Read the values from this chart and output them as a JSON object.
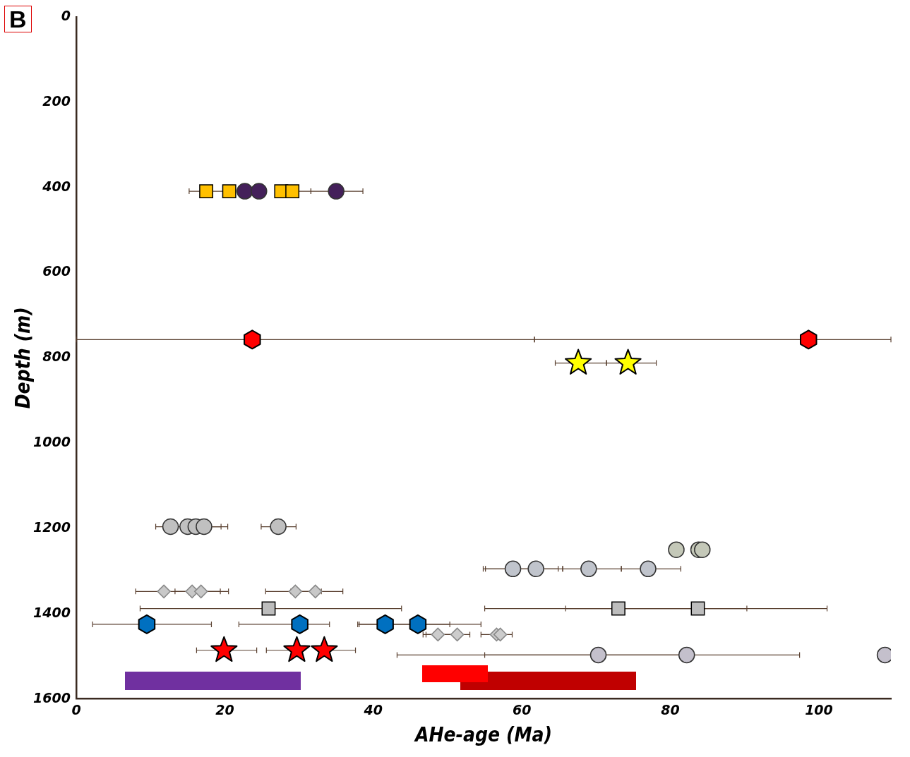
{
  "chart_data": {
    "type": "scatter",
    "xlabel": "AHe-age (Ma)",
    "ylabel": "Depth (m)",
    "annotations": [
      "B"
    ],
    "xlim": [
      0,
      109.7
    ],
    "xticks": [
      0,
      20,
      40,
      60,
      80,
      100
    ],
    "ylim": [
      1600,
      0
    ],
    "yticks": [
      0,
      200,
      400,
      600,
      800,
      1000,
      1200,
      1400,
      1600
    ],
    "grid": false,
    "legend": false,
    "series": [
      {
        "color": "#ffc000",
        "marker": "square",
        "x": [
          17.5,
          20.6,
          27.6,
          29.1
        ],
        "values": [
          409,
          409,
          409,
          409
        ],
        "xerrors": [
          [
            15.2,
            19.8
          ],
          null,
          null,
          [
            26.9,
            31.6
          ]
        ]
      },
      {
        "color": "#44205a",
        "marker": "circle",
        "x": [
          22.7,
          24.6,
          35.0
        ],
        "values": [
          409,
          409,
          409
        ],
        "xerrors": [
          null,
          null,
          [
            31.6,
            38.6
          ]
        ]
      },
      {
        "color": "#ff0000",
        "x": [
          23.7,
          98.6
        ],
        "values": [
          757,
          757
        ],
        "xerrors": [
          [
            0,
            61.7
          ],
          [
            61.7,
            109.7
          ]
        ]
      },
      {
        "color": "#ffff00",
        "marker": "star",
        "x": [
          67.6,
          74.3
        ],
        "values": [
          812,
          812
        ],
        "xerrors": [
          [
            64.5,
            71.4
          ],
          [
            71.4,
            78.1
          ]
        ]
      },
      {
        "color": "#c0c0c0",
        "marker": "circle",
        "x": [
          12.7,
          15.0,
          16.1,
          17.2,
          27.2
        ],
        "values": [
          1196,
          1196,
          1196,
          1196,
          1196
        ],
        "xerrors": [
          [
            10.7,
            19.5
          ],
          null,
          null,
          [
            14.9,
            20.4
          ],
          [
            24.9,
            29.6
          ]
        ]
      },
      {
        "color": "#c4c8b8",
        "marker": "circle",
        "x": [
          80.8,
          83.8,
          84.3
        ],
        "values": [
          1250,
          1250,
          1250
        ]
      },
      {
        "color": "#c0c4cc",
        "marker": "circle",
        "x": [
          58.8,
          61.9,
          69.0,
          77.0
        ],
        "values": [
          1295,
          1295,
          1295,
          1295
        ],
        "xerrors": [
          [
            54.8,
            64.9
          ],
          [
            55.1,
            65.5
          ],
          [
            65.5,
            73.4
          ],
          [
            73.4,
            81.4
          ]
        ]
      },
      {
        "color": "#c8c8c8",
        "marker": "diamond",
        "x": [
          11.8,
          15.6,
          16.8,
          29.5,
          32.2
        ],
        "values": [
          1348,
          1348,
          1348,
          1348,
          1348
        ],
        "xerrors": [
          [
            8.0,
            19.4
          ],
          null,
          [
            13.3,
            20.5
          ],
          [
            25.5,
            33.0
          ],
          [
            28.9,
            35.9
          ]
        ]
      },
      {
        "color": "#bdbdbd",
        "marker": "square",
        "x": [
          25.9,
          73.0,
          83.7
        ],
        "values": [
          1388,
          1388,
          1388
        ],
        "xerrors": [
          [
            8.6,
            43.8
          ],
          [
            55.0,
            90.3
          ],
          [
            65.9,
            101.1
          ]
        ]
      },
      {
        "color": "#0070c0",
        "x": [
          9.5,
          30.1,
          41.6,
          46.0
        ],
        "values": [
          1425,
          1425,
          1425,
          1425
        ],
        "xerrors": [
          [
            2.2,
            18.2
          ],
          [
            21.9,
            34.1
          ],
          [
            38.1,
            50.3
          ],
          [
            37.9,
            54.5
          ]
        ]
      },
      {
        "color": "#cccccc",
        "marker": "diamond",
        "x": [
          48.7,
          51.3,
          56.6,
          57.1
        ],
        "values": [
          1449,
          1449,
          1449,
          1449
        ],
        "xerrors": [
          [
            46.7,
            51.0
          ],
          [
            47.1,
            53.0
          ],
          [
            54.5,
            58.7
          ],
          null
        ]
      },
      {
        "color": "#ff0000",
        "marker": "star",
        "x": [
          19.9,
          29.7,
          33.4
        ],
        "values": [
          1486,
          1486,
          1486
        ],
        "xerrors": [
          [
            16.2,
            24.3
          ],
          [
            25.6,
            29.7
          ],
          [
            33.4,
            37.6
          ]
        ]
      },
      {
        "color": "#c4c0cc",
        "marker": "circle",
        "x": [
          70.3,
          82.2,
          108.9
        ],
        "values": [
          1497,
          1497,
          1497
        ],
        "xerrors": [
          [
            43.2,
            97.4
          ],
          [
            55.0,
            82.2
          ],
          null
        ]
      }
    ]
  }
}
